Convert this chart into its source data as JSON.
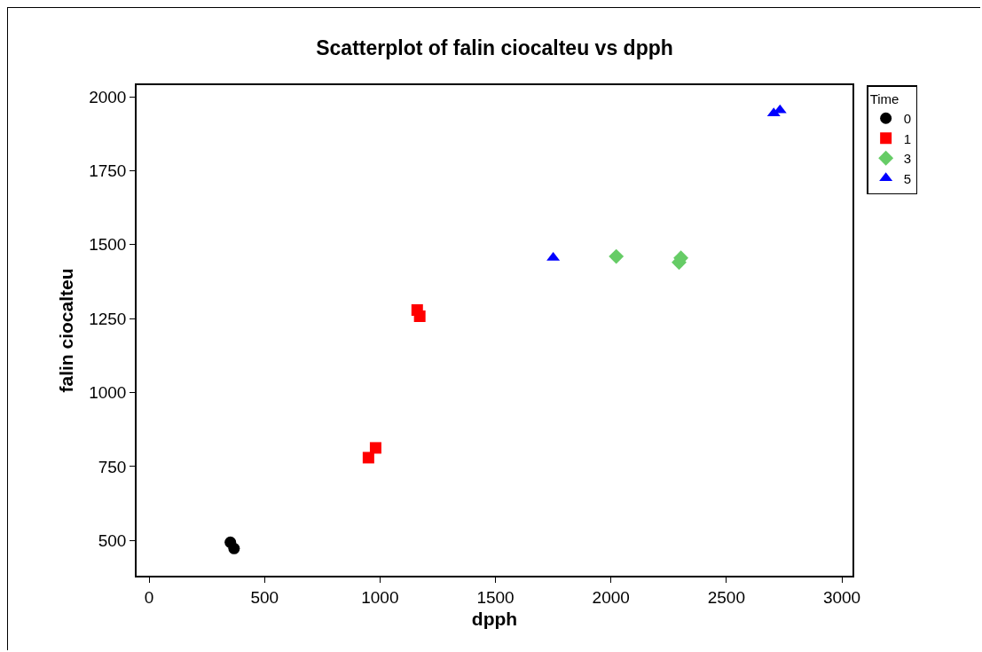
{
  "chart_data": {
    "type": "scatter",
    "title": "Scatterplot of falin ciocalteu vs dpph",
    "xlabel": "dpph",
    "ylabel": "falin ciocalteu",
    "legend_title": "Time",
    "legend": "top right",
    "xlim": [
      -54,
      3046
    ],
    "xticks": [
      0,
      500,
      1000,
      1500,
      2000,
      2500,
      3000
    ],
    "ylim": [
      381,
      2039
    ],
    "yticks": [
      500,
      750,
      1000,
      1250,
      1500,
      1750,
      2000
    ],
    "grid": false,
    "series": [
      {
        "name": "0",
        "color": "#000000",
        "marker": "circle",
        "x": [
          352,
          368
        ],
        "values": [
          494,
          473
        ]
      },
      {
        "name": "1",
        "color": "#ff0000",
        "marker": "square",
        "x": [
          950,
          981,
          1161,
          1172
        ],
        "values": [
          780,
          813,
          1279,
          1258
        ]
      },
      {
        "name": "3",
        "color": "#66cc66",
        "marker": "diamond",
        "x": [
          2023,
          2295,
          2303
        ],
        "values": [
          1460,
          1440,
          1455
        ]
      },
      {
        "name": "5",
        "color": "#0000ff",
        "marker": "triangle",
        "x": [
          1750,
          2705,
          2732
        ],
        "values": [
          1456,
          1944,
          1954
        ]
      }
    ]
  }
}
